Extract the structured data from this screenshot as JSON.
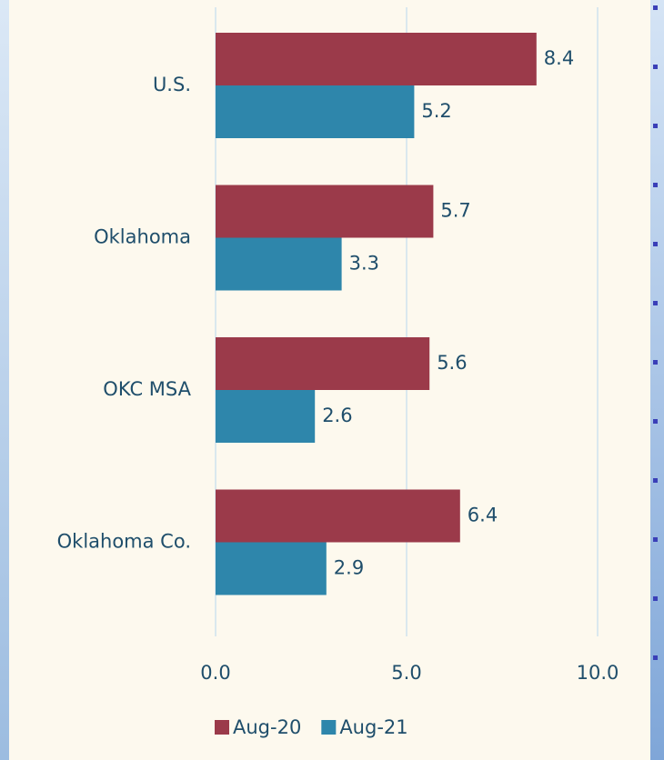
{
  "chart_data": {
    "type": "bar",
    "orientation": "horizontal",
    "categories": [
      "U.S.",
      "Oklahoma",
      "OKC MSA",
      "Oklahoma Co."
    ],
    "series": [
      {
        "name": "Aug-20",
        "color": "#9b3a4a",
        "values": [
          8.4,
          5.7,
          5.6,
          6.4
        ]
      },
      {
        "name": "Aug-21",
        "color": "#2e86ab",
        "values": [
          5.2,
          3.3,
          2.6,
          2.9
        ]
      }
    ],
    "xlim": [
      0,
      10
    ],
    "xticks": [
      {
        "value": 0,
        "label": "0.0"
      },
      {
        "value": 5,
        "label": "5.0"
      },
      {
        "value": 10,
        "label": "10.0"
      }
    ],
    "grid": true,
    "legend": "bottom"
  }
}
